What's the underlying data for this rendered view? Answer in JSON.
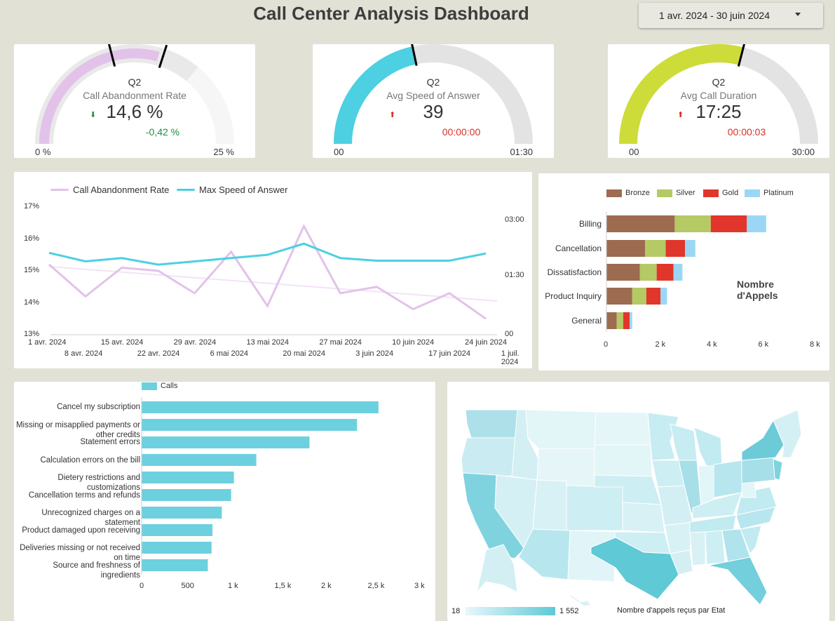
{
  "header": {
    "title": "Call Center Analysis Dashboard",
    "date_range": "1 avr. 2024 - 30 juin 2024"
  },
  "gauges": [
    {
      "quarter": "Q2",
      "label": "Call Abandonment Rate",
      "value": "14,6 %",
      "delta": "-0,42 %",
      "delta_color": "#1e8e3e",
      "trend": "down",
      "min_label": "0 %",
      "max_label": "25 %",
      "color": "#e3c2ea",
      "fill_fraction": 0.584,
      "target_fraction": 0.6,
      "band_fraction": 0.72
    },
    {
      "quarter": "Q2",
      "label": "Avg Speed of Answer",
      "value": "39",
      "delta": "00:00:00",
      "delta_color": "#d93025",
      "trend": "up",
      "min_label": "00",
      "max_label": "01:30",
      "color": "#4dd0e1",
      "fill_fraction": 0.433,
      "target_fraction": 0.433
    },
    {
      "quarter": "Q2",
      "label": "Avg Call Duration",
      "value": "17:25",
      "delta": "00:00:03",
      "delta_color": "#d93025",
      "trend": "up",
      "min_label": "00",
      "max_label": "30:00",
      "color": "#cddc39",
      "fill_fraction": 0.58,
      "target_fraction": 0.58
    }
  ],
  "line_chart": {
    "legend": [
      "Call Abandonment Rate",
      "Max Speed of Answer"
    ],
    "left_ticks": [
      "17%",
      "16%",
      "15%",
      "14%",
      "13%"
    ],
    "right_ticks": [
      "03:00",
      "01:30",
      "00"
    ],
    "x_ticks_top": [
      "1 avr. 2024",
      "15 avr. 2024",
      "29 avr. 2024",
      "13 mai 2024",
      "27 mai 2024",
      "10 juin 2024",
      "24 juin 2024"
    ],
    "x_ticks_bottom": [
      "8 avr. 2024",
      "22 avr. 2024",
      "6 mai 2024",
      "20 mai 2024",
      "3 juin 2024",
      "17 juin 2024",
      "1 juil. 2024"
    ]
  },
  "stacked_bar": {
    "legend": [
      "Bronze",
      "Silver",
      "Gold",
      "Platinum"
    ],
    "categories": [
      "Billing",
      "Cancellation",
      "Dissatisfaction",
      "Product Inquiry",
      "General"
    ],
    "x_ticks": [
      "0",
      "2 k",
      "4 k",
      "6 k",
      "8 k"
    ],
    "axis_title": "Nombre d'Appels"
  },
  "reason_bar": {
    "legend": "Calls",
    "categories": [
      "Cancel my subscription",
      "Missing or misapplied payments or other credits",
      "Statement errors",
      "Calculation errors on the bill",
      "Dietery restrictions and customizations",
      "Cancellation terms and refunds",
      "Unrecognized charges on a statement",
      "Product damaged upon receiving",
      "Deliveries missing or not received on time",
      "Source and freshness of ingredients"
    ],
    "x_ticks": [
      "0",
      "500",
      "1 k",
      "1,5 k",
      "2 k",
      "2,5 k",
      "3 k"
    ]
  },
  "map": {
    "legend_min": "18",
    "legend_max": "1 552",
    "caption": "Nombre d'appels reçus par Etat"
  },
  "chart_data": [
    {
      "type": "line",
      "x": [
        "2024-04-01",
        "2024-04-08",
        "2024-04-15",
        "2024-04-22",
        "2024-04-29",
        "2024-05-06",
        "2024-05-13",
        "2024-05-20",
        "2024-05-27",
        "2024-06-03",
        "2024-06-10",
        "2024-06-17",
        "2024-06-24"
      ],
      "series": [
        {
          "name": "Call Abandonment Rate",
          "values": [
            15.2,
            14.2,
            15.1,
            15.0,
            14.3,
            15.6,
            13.9,
            16.4,
            14.3,
            14.5,
            13.8,
            14.3,
            13.5
          ]
        },
        {
          "name": "Max Speed of Answer",
          "values": [
            "02:05",
            "01:52",
            "01:57",
            "01:47",
            "01:52",
            "01:57",
            "02:02",
            "02:19",
            "01:57",
            "01:53",
            "01:53",
            "01:53",
            "02:04"
          ]
        }
      ],
      "ylim_left": [
        13,
        17
      ],
      "ylim_right": [
        "00",
        "03:00"
      ]
    },
    {
      "type": "bar",
      "orientation": "horizontal",
      "stacked": true,
      "categories": [
        "Billing",
        "Cancellation",
        "Dissatisfaction",
        "Product Inquiry",
        "General"
      ],
      "series": [
        {
          "name": "Bronze",
          "values": [
            2650,
            1500,
            1300,
            1000,
            400
          ]
        },
        {
          "name": "Silver",
          "values": [
            1400,
            800,
            650,
            550,
            250
          ]
        },
        {
          "name": "Gold",
          "values": [
            1400,
            750,
            650,
            550,
            250
          ]
        },
        {
          "name": "Platinum",
          "values": [
            750,
            400,
            350,
            250,
            100
          ]
        }
      ],
      "xlim": [
        0,
        8000
      ],
      "xlabel": "Nombre d'Appels"
    },
    {
      "type": "bar",
      "orientation": "horizontal",
      "categories": [
        "Cancel my subscription",
        "Missing or misapplied payments or other credits",
        "Statement errors",
        "Calculation errors on the bill",
        "Dietery restrictions and customizations",
        "Cancellation terms and refunds",
        "Unrecognized charges on a statement",
        "Product damaged upon receiving",
        "Deliveries missing or not received on time",
        "Source and freshness of ingredients"
      ],
      "series": [
        {
          "name": "Calls",
          "values": [
            2540,
            2310,
            1800,
            1230,
            990,
            960,
            860,
            760,
            750,
            710
          ]
        }
      ],
      "xlim": [
        0,
        3000
      ]
    }
  ],
  "colors": {
    "background": "#e1e1d6",
    "card": "#ffffff",
    "bronze": "#9c6b50",
    "silver": "#b5c964",
    "gold": "#e0362c",
    "platinum": "#9bd7f5",
    "calls": "#6dd0de",
    "line_rate": "#e3c2ea",
    "line_speed": "#4dd0e1"
  }
}
